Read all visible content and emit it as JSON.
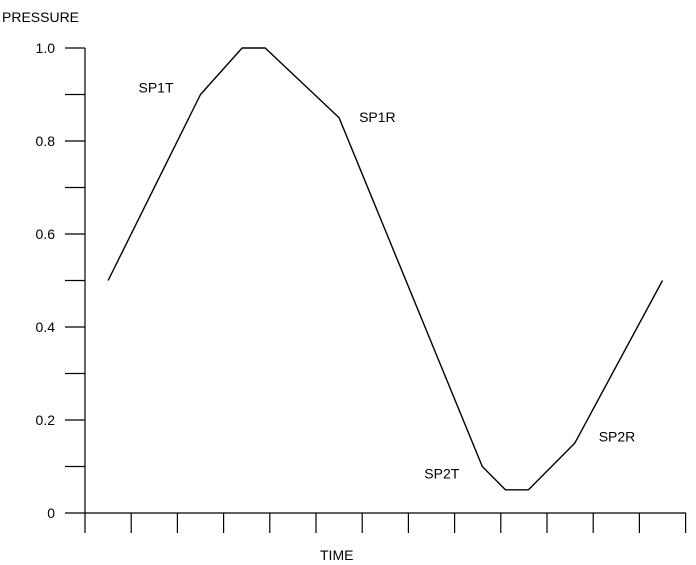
{
  "chart_data": {
    "type": "line",
    "ylabel": "PRESSURE",
    "xlabel": "TIME",
    "ylim": [
      0,
      1.0
    ],
    "y_ticks": [
      "0",
      "0.2",
      "0.4",
      "0.6",
      "0.8",
      "1.0"
    ],
    "y_tick_values": [
      0,
      0.2,
      0.4,
      0.6,
      0.8,
      1.0
    ],
    "grid": false,
    "series": [
      {
        "x": [
          0.5,
          2.5,
          3.4,
          3.9,
          5.5,
          8.6,
          9.1,
          9.6,
          10.6,
          12.5
        ],
        "values": [
          0.5,
          0.9,
          1.0,
          1.0,
          0.85,
          0.1,
          0.05,
          0.05,
          0.15,
          0.5
        ]
      }
    ],
    "annotations": [
      {
        "text": "SP1T",
        "x": 2.5,
        "y": 0.9
      },
      {
        "text": "SP1R",
        "x": 5.5,
        "y": 0.85
      },
      {
        "text": "SP2T",
        "x": 8.6,
        "y": 0.1
      },
      {
        "text": "SP2R",
        "x": 10.6,
        "y": 0.15
      }
    ]
  }
}
